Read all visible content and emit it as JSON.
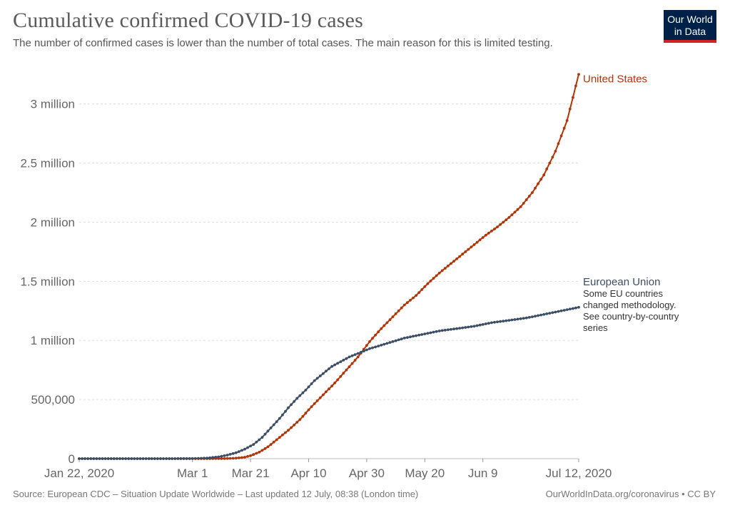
{
  "header": {
    "title": "Cumulative confirmed COVID-19 cases",
    "subtitle": "The number of confirmed cases is lower than the number of total cases. The main reason for this is limited testing."
  },
  "logo": {
    "line1": "Our World",
    "line2": "in Data"
  },
  "footer": {
    "source": "Source: European CDC – Situation Update Worldwide – Last updated 12 July, 08:38 (London time)",
    "site": "OurWorldInData.org/coronavirus • CC BY"
  },
  "chart_data": {
    "type": "line",
    "title": "Cumulative confirmed COVID-19 cases",
    "xlabel": "",
    "ylabel": "",
    "x_unit": "days since Jan 22, 2020",
    "xlim": [
      0,
      172
    ],
    "ylim": [
      0,
      3300000
    ],
    "grid": true,
    "y_ticks": [
      {
        "value": 0,
        "label": "0"
      },
      {
        "value": 500000,
        "label": "500,000"
      },
      {
        "value": 1000000,
        "label": "1 million"
      },
      {
        "value": 1500000,
        "label": "1.5 million"
      },
      {
        "value": 2000000,
        "label": "2 million"
      },
      {
        "value": 2500000,
        "label": "2.5 million"
      },
      {
        "value": 3000000,
        "label": "3 million"
      }
    ],
    "x_ticks": [
      {
        "value": 0,
        "label": "Jan 22, 2020"
      },
      {
        "value": 39,
        "label": "Mar 1"
      },
      {
        "value": 59,
        "label": "Mar 21"
      },
      {
        "value": 79,
        "label": "Apr 10"
      },
      {
        "value": 99,
        "label": "Apr 30"
      },
      {
        "value": 119,
        "label": "May 20"
      },
      {
        "value": 139,
        "label": "Jun 9"
      },
      {
        "value": 172,
        "label": "Jul 12, 2020"
      }
    ],
    "series": [
      {
        "name": "United States",
        "label": "United States",
        "color": "#b13507",
        "x": [
          0,
          45,
          50,
          54,
          57,
          59,
          62,
          65,
          68,
          72,
          76,
          80,
          84,
          88,
          92,
          96,
          100,
          104,
          108,
          112,
          116,
          120,
          124,
          128,
          132,
          136,
          140,
          144,
          148,
          152,
          156,
          160,
          164,
          168,
          172
        ],
        "y": [
          1,
          100,
          800,
          4000,
          12000,
          25000,
          55000,
          100000,
          160000,
          240000,
          330000,
          440000,
          540000,
          640000,
          750000,
          860000,
          990000,
          1100000,
          1200000,
          1300000,
          1380000,
          1480000,
          1570000,
          1650000,
          1730000,
          1810000,
          1890000,
          1960000,
          2040000,
          2130000,
          2250000,
          2400000,
          2600000,
          2860000,
          3250000
        ]
      },
      {
        "name": "European Union",
        "label": "European Union",
        "note": [
          "Some EU countries",
          "changed methodology.",
          "See country-by-country",
          "series"
        ],
        "color": "#3c4e66",
        "x": [
          0,
          30,
          40,
          44,
          48,
          51,
          54,
          57,
          60,
          63,
          66,
          69,
          72,
          75,
          78,
          81,
          84,
          87,
          90,
          93,
          96,
          100,
          104,
          108,
          112,
          118,
          124,
          130,
          136,
          142,
          148,
          154,
          160,
          166,
          172
        ],
        "y": [
          0,
          0,
          1000,
          5000,
          15000,
          30000,
          50000,
          80000,
          120000,
          180000,
          260000,
          340000,
          430000,
          510000,
          580000,
          660000,
          720000,
          780000,
          820000,
          860000,
          890000,
          930000,
          960000,
          990000,
          1020000,
          1050000,
          1080000,
          1100000,
          1120000,
          1150000,
          1170000,
          1190000,
          1220000,
          1250000,
          1280000
        ]
      }
    ]
  }
}
